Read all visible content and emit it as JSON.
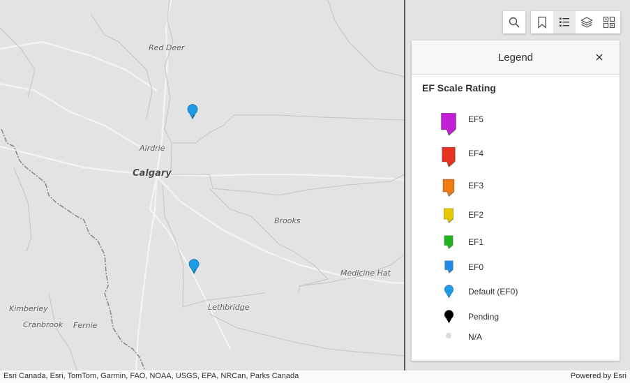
{
  "map": {
    "place_labels": {
      "red_deer": "Red Deer",
      "airdrie": "Airdrie",
      "calgary": "Calgary",
      "brooks": "Brooks",
      "medicine_hat": "Medicine Hat",
      "lethbridge": "Lethbridge",
      "kimberley": "Kimberley",
      "cranbrook": "Cranbrook",
      "fernie": "Fernie"
    },
    "markers": [
      {
        "type": "Default (EF0)",
        "color": "#1e9be6"
      },
      {
        "type": "Default (EF0)",
        "color": "#1e9be6"
      }
    ]
  },
  "toolbar": {
    "search_icon": "search-icon",
    "bookmarks_icon": "bookmark-icon",
    "legend_icon": "legend-list-icon",
    "layers_icon": "layers-icon",
    "basemap_icon": "basemap-gallery-icon",
    "active": "legend"
  },
  "legend": {
    "title": "Legend",
    "close_icon": "close-icon",
    "section_title": "EF Scale Rating",
    "items": [
      {
        "label": "EF5",
        "color": "#c41fd6",
        "shape": "box-pin"
      },
      {
        "label": "EF4",
        "color": "#e83322",
        "shape": "box-pin"
      },
      {
        "label": "EF3",
        "color": "#f07d12",
        "shape": "box-pin"
      },
      {
        "label": "EF2",
        "color": "#e6c800",
        "shape": "box-pin"
      },
      {
        "label": "EF1",
        "color": "#1fb51f",
        "shape": "box-pin"
      },
      {
        "label": "EF0",
        "color": "#1e8ae6",
        "shape": "box-pin"
      },
      {
        "label": "Default (EF0)",
        "color": "#1e9be6",
        "shape": "round-pin"
      },
      {
        "label": "Pending",
        "color": "#000000",
        "shape": "round-pin"
      },
      {
        "label": "N/A",
        "color": "#dcdcdc",
        "shape": "dot"
      }
    ]
  },
  "attribution": {
    "text": "Esri Canada, Esri, TomTom, Garmin, FAO, NOAA, USGS, EPA, NRCan, Parks Canada",
    "powered_by": "Powered by Esri"
  }
}
